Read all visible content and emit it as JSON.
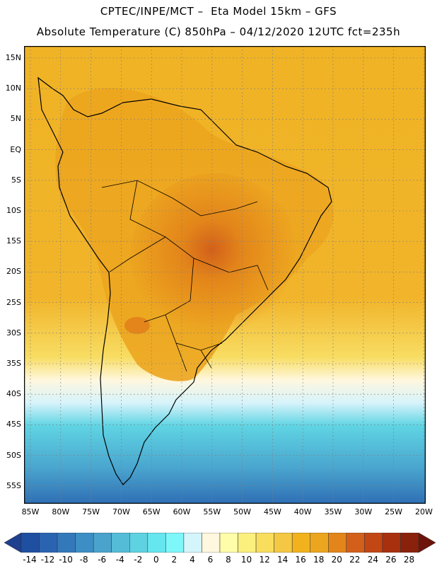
{
  "header": {
    "title": "CPTEC/INPE/MCT –  Eta Model 15km – GFS",
    "subtitle": "Absolute Temperature (C) 850hPa – 04/12/2020 12UTC fct=235h"
  },
  "map": {
    "lat_labels": [
      "15N",
      "10N",
      "5N",
      "EQ",
      "5S",
      "10S",
      "15S",
      "20S",
      "25S",
      "30S",
      "35S",
      "40S",
      "45S",
      "50S",
      "55S"
    ],
    "lon_labels": [
      "85W",
      "80W",
      "75W",
      "70W",
      "65W",
      "60W",
      "55W",
      "50W",
      "45W",
      "40W",
      "35W",
      "30W",
      "25W",
      "20W"
    ],
    "lat_range": [
      -58,
      17
    ],
    "lon_range": [
      -86,
      -20
    ],
    "gridlines": true
  },
  "colorbar": {
    "labels": [
      "-14",
      "-12",
      "-10",
      "-8",
      "-6",
      "-4",
      "-2",
      "0",
      "2",
      "4",
      "6",
      "8",
      "10",
      "12",
      "14",
      "16",
      "18",
      "20",
      "22",
      "24",
      "26",
      "28"
    ],
    "colors": [
      "#1f3f8f",
      "#1f4fa0",
      "#2a64b0",
      "#3379ba",
      "#3d8ec4",
      "#4aa3cc",
      "#55bcd8",
      "#5fd2e2",
      "#66e6ee",
      "#7ef7fa",
      "#d4f5fb",
      "#fff7de",
      "#fffcaa",
      "#fbef7e",
      "#f9de5e",
      "#f4c844",
      "#f1b21e",
      "#eca51f",
      "#e3851a",
      "#d2601a",
      "#c24715",
      "#a8300e",
      "#8a210b",
      "#6c130a"
    ]
  }
}
